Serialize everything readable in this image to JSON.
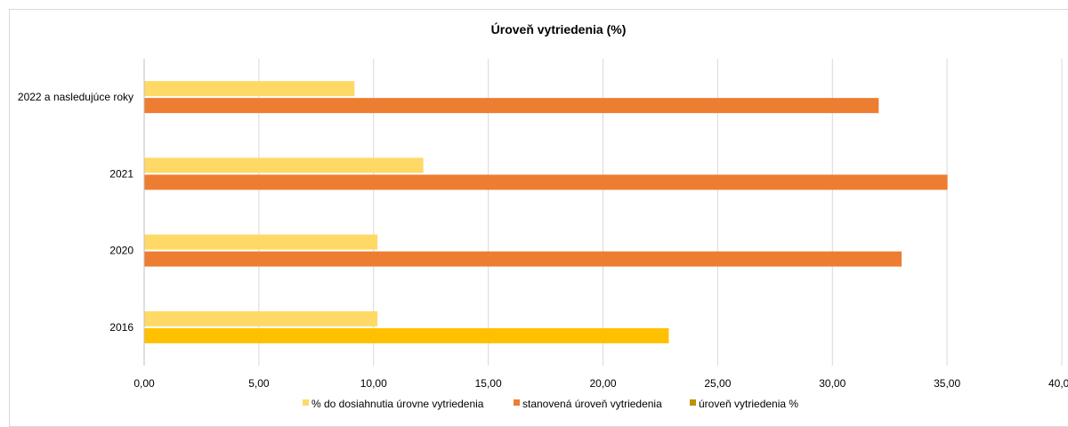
{
  "chart_data": {
    "type": "bar",
    "orientation": "horizontal",
    "title": "Úroveň vytriedenia (%)",
    "xlabel": "",
    "ylabel": "",
    "categories": [
      "2022 a nasledujúce roky",
      "2021",
      "2020",
      "2016"
    ],
    "xlim": [
      0,
      40
    ],
    "x_ticks": [
      "0,00",
      "5,00",
      "10,00",
      "15,00",
      "20,00",
      "25,00",
      "30,00",
      "35,00",
      "40,00"
    ],
    "grid": "vertical",
    "legend_position": "bottom",
    "legend": [
      {
        "label": "% do dosiahnutia úrovne vytriedenia",
        "color": "#FFD966"
      },
      {
        "label": "stanovená úroveň vytriedenia",
        "color": "#ED7D31"
      },
      {
        "label": "úroveň vytriedenia %",
        "color": "#BF9000"
      }
    ],
    "bars": [
      {
        "category": "2022 a nasledujúce roky",
        "legend_item": "% do dosiahnutia úrovne vytriedenia",
        "value": 9.15,
        "color": "#FFD966"
      },
      {
        "category": "2022 a nasledujúce roky",
        "legend_item": "stanovená úroveň vytriedenia",
        "value": 32.0,
        "color": "#ED7D31"
      },
      {
        "category": "2021",
        "legend_item": "% do dosiahnutia úrovne vytriedenia",
        "value": 12.15,
        "color": "#FFD966"
      },
      {
        "category": "2021",
        "legend_item": "stanovená úroveň vytriedenia",
        "value": 35.0,
        "color": "#ED7D31"
      },
      {
        "category": "2020",
        "legend_item": "% do dosiahnutia úrovne vytriedenia",
        "value": 10.15,
        "color": "#FFD966"
      },
      {
        "category": "2020",
        "legend_item": "stanovená úroveň vytriedenia",
        "value": 33.0,
        "color": "#ED7D31"
      },
      {
        "category": "2016",
        "legend_item": "% do dosiahnutia úrovne vytriedenia",
        "value": 10.15,
        "color": "#FFD966"
      },
      {
        "category": "2016",
        "legend_item": "stanovená úroveň vytriedenia",
        "value": 22.85,
        "color": "#FFC000"
      }
    ]
  }
}
